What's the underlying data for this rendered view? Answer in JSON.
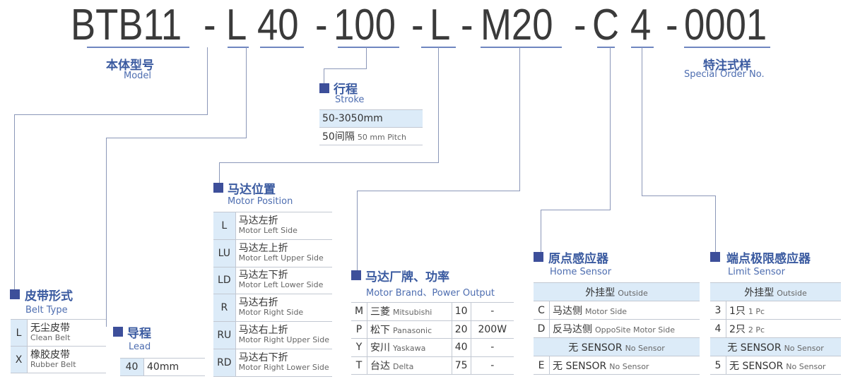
{
  "code": {
    "model": "BTB11",
    "d1": "-",
    "belt": "L",
    "lead": "40",
    "d2": "-",
    "stroke": "100",
    "d3": "-",
    "position": "L",
    "d4": "-",
    "motor": "M20",
    "d5": "-",
    "home": "C",
    "limit": "4",
    "d6": "-",
    "special": "0001"
  },
  "model": {
    "zh": "本体型号",
    "en": "Model"
  },
  "special": {
    "zh": "特注式样",
    "en": "Special Order No."
  },
  "stroke": {
    "zh": "行程",
    "en": "Stroke",
    "range": "50-3050mm",
    "pitch_zh": "50间隔",
    "pitch_en": "50 mm Pitch"
  },
  "belt": {
    "zh": "皮带形式",
    "en": "Belt Type",
    "rows": [
      {
        "k": "L",
        "zh": "无尘皮带",
        "en": "Clean Belt"
      },
      {
        "k": "X",
        "zh": "橡胶皮带",
        "en": "Rubber Belt"
      }
    ]
  },
  "lead": {
    "zh": "导程",
    "en": "Lead",
    "rows": [
      {
        "k": "40",
        "v": "40mm"
      }
    ]
  },
  "position": {
    "zh": "马达位置",
    "en": "Motor Position",
    "rows": [
      {
        "k": "L",
        "zh": "马达左折",
        "en": "Motor Left Side"
      },
      {
        "k": "LU",
        "zh": "马达左上折",
        "en": "Motor Left Upper Side"
      },
      {
        "k": "LD",
        "zh": "马达左下折",
        "en": "Motor Left Lower Side"
      },
      {
        "k": "R",
        "zh": "马达右折",
        "en": "Motor Right Side"
      },
      {
        "k": "RU",
        "zh": "马达右上折",
        "en": "Motor Right Upper Side"
      },
      {
        "k": "RD",
        "zh": "马达右下折",
        "en": "Motor Right Lower Side"
      }
    ]
  },
  "motor": {
    "zh": "马达厂牌、功率",
    "en": "Motor Brand、Power Output",
    "rows": [
      {
        "k": "M",
        "zh": "三菱",
        "en": "Mitsubishi",
        "p": "10",
        "w": "-"
      },
      {
        "k": "P",
        "zh": "松下",
        "en": "Panasonic",
        "p": "20",
        "w": "200W"
      },
      {
        "k": "Y",
        "zh": "安川",
        "en": "Yaskawa",
        "p": "40",
        "w": "-"
      },
      {
        "k": "T",
        "zh": "台达",
        "en": "Delta",
        "p": "75",
        "w": "-"
      }
    ]
  },
  "home": {
    "zh": "原点感应器",
    "en": "Home Sensor",
    "h1_zh": "外挂型",
    "h1_en": "Outside",
    "rows1": [
      {
        "k": "C",
        "zh": "马达侧",
        "en": "Motor Side"
      },
      {
        "k": "D",
        "zh": "反马达侧",
        "en": "OppoSite Motor Side"
      }
    ],
    "h2_zh": "无 SENSOR",
    "h2_en": "No Sensor",
    "rows2": [
      {
        "k": "E",
        "zh": "无 SENSOR",
        "en": "No Sensor"
      }
    ]
  },
  "limit": {
    "zh": "端点极限感应器",
    "en": "Limit Sensor",
    "h1_zh": "外挂型",
    "h1_en": "Outside",
    "rows1": [
      {
        "k": "3",
        "zh": "1只",
        "en": "1 Pc"
      },
      {
        "k": "4",
        "zh": "2只",
        "en": "2 Pc"
      }
    ],
    "h2_zh": "无 SENSOR",
    "h2_en": "No Sensor",
    "rows2": [
      {
        "k": "5",
        "zh": "无 SENSOR",
        "en": "No Sensor"
      }
    ]
  }
}
